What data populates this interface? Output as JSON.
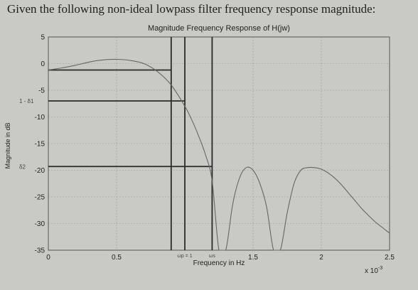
{
  "question_text": "Given the following non-ideal lowpass filter frequency response magnitude:",
  "chart_data": {
    "type": "line",
    "title": "Magnitude Frequency Response of H(jw)",
    "xlabel": "Frequency in Hz",
    "ylabel": "Magnitude in dB",
    "xlim": [
      0,
      2.5
    ],
    "ylim": [
      -35,
      5
    ],
    "x_scale_label": "x 10",
    "x_scale_exponent": "-3",
    "grid": true,
    "x_ticks": [
      {
        "value": 0,
        "label": "0"
      },
      {
        "value": 0.5,
        "label": "0.5"
      },
      {
        "value": 1,
        "label": "1"
      },
      {
        "value": 1.5,
        "label": "1.5"
      },
      {
        "value": 2,
        "label": "2"
      },
      {
        "value": 2.5,
        "label": "2.5"
      }
    ],
    "y_ticks": [
      {
        "value": 5,
        "label": "5"
      },
      {
        "value": 0,
        "label": "0"
      },
      {
        "value": -5,
        "label": "-5"
      },
      {
        "value": -10,
        "label": "-10"
      },
      {
        "value": -15,
        "label": "-15"
      },
      {
        "value": -20,
        "label": "-20"
      },
      {
        "value": -25,
        "label": "-25"
      },
      {
        "value": -30,
        "label": "-30"
      },
      {
        "value": -35,
        "label": "-35"
      }
    ],
    "series": [
      {
        "x": [
          0,
          0.1,
          0.2,
          0.3,
          0.4,
          0.5,
          0.6,
          0.7,
          0.8,
          0.9,
          1.0,
          1.05,
          1.1,
          1.15,
          1.2,
          1.25,
          1.3,
          1.35,
          1.4,
          1.45,
          1.5,
          1.55,
          1.6,
          1.65,
          1.7,
          1.75,
          1.8,
          1.85,
          1.9,
          1.95,
          2.0,
          2.05,
          2.1,
          2.15,
          2.2,
          2.25,
          2.3,
          2.35,
          2.4,
          2.45,
          2.5
        ],
        "y": [
          -1.2,
          -0.8,
          -0.3,
          0.3,
          0.7,
          0.8,
          0.6,
          0.0,
          -1.5,
          -4.0,
          -8.0,
          -10.5,
          -13.5,
          -17.0,
          -22.0,
          -35.0,
          -35.0,
          -26.5,
          -21.5,
          -19.5,
          -20.0,
          -22.5,
          -27.0,
          -35.0,
          -35.0,
          -28.0,
          -22.5,
          -20.0,
          -19.5,
          -19.5,
          -19.8,
          -20.5,
          -21.5,
          -22.8,
          -24.3,
          -25.8,
          -27.3,
          -28.6,
          -29.8,
          -30.8,
          -31.8
        ]
      }
    ],
    "lines": [
      {
        "orientation": "h",
        "y": -1.2,
        "x_from": 0,
        "x_to": 0.9
      },
      {
        "orientation": "h",
        "y": -7.0,
        "x_from": 0,
        "x_to": 1.0
      },
      {
        "orientation": "h",
        "y": -19.3,
        "x_from": 0,
        "x_to": 1.2
      },
      {
        "orientation": "v",
        "x": 0.9,
        "y_from": -35,
        "y_to": 5
      },
      {
        "orientation": "v",
        "x": 1.0,
        "y_from": -35,
        "y_to": 5
      },
      {
        "orientation": "v",
        "x": 1.2,
        "y_from": -35,
        "y_to": 5
      }
    ],
    "annotations": [
      {
        "text": "1 - δ1",
        "x": 0,
        "y": -7
      },
      {
        "text": "δ2",
        "x": 0,
        "y": -19.3
      },
      {
        "text": "ωp = 1",
        "x": 1.0,
        "y": -35
      },
      {
        "text": "ωs",
        "x": 1.2,
        "y": -35
      }
    ]
  }
}
